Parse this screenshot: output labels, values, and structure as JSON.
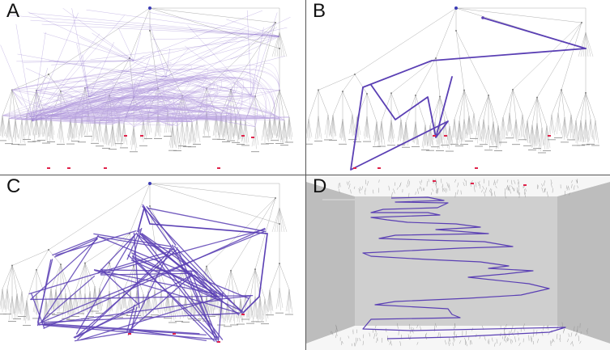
{
  "panels": [
    {
      "id": "A",
      "label": "A"
    },
    {
      "id": "B",
      "label": "B"
    },
    {
      "id": "C",
      "label": "C"
    },
    {
      "id": "D",
      "label": "D"
    }
  ],
  "colors": {
    "tree_line": "#9a9a9a",
    "tree_node": "#7d7d7d",
    "bundle": "#7a5bc2",
    "bundle_light": "#b9a4e0",
    "path": "#5a3fb4",
    "highlight": "#e0224a",
    "floor": "#cfcfcf",
    "wall": "#bdbdbd"
  }
}
